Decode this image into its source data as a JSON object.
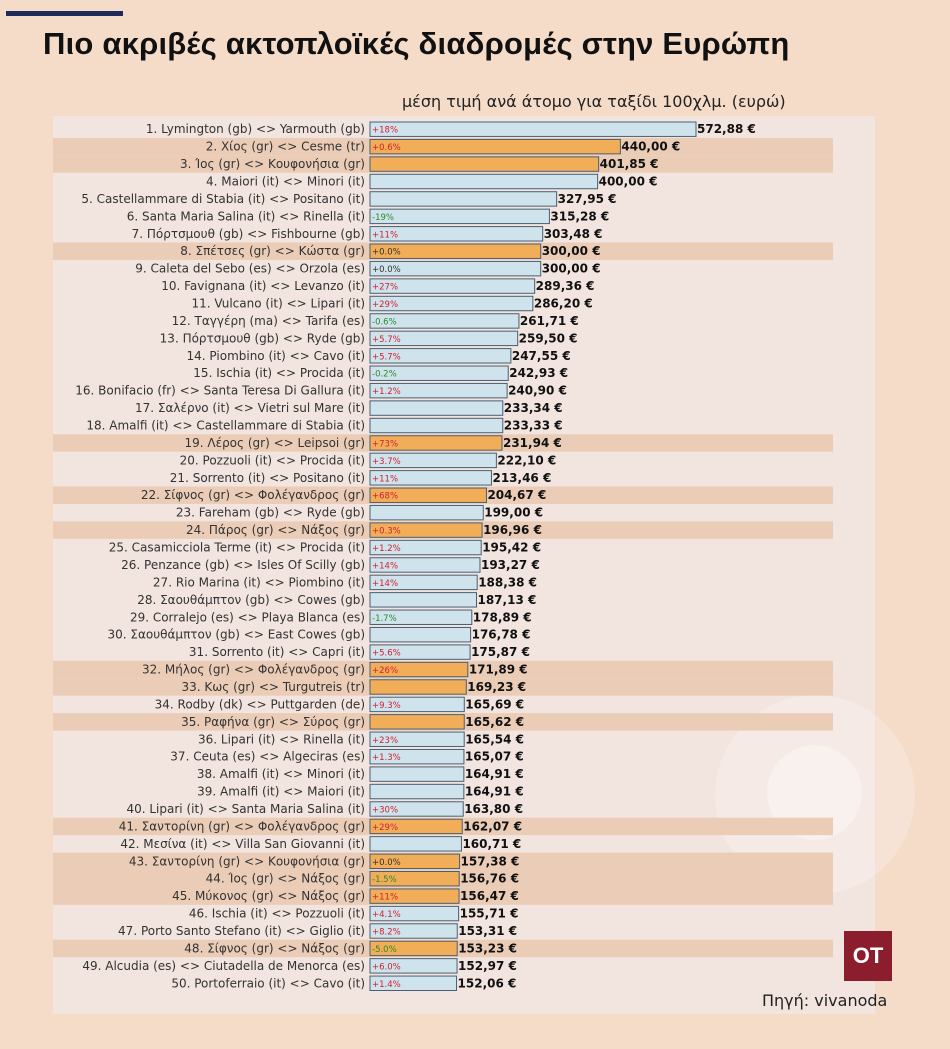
{
  "header": {
    "title": "Πιο ακριβές ακτοπλοϊκές διαδρομές στην Ευρώπη",
    "subtitle": "μέση τιμή ανά άτομο για ταξίδι 100χλμ. (ευρώ)"
  },
  "footer": {
    "source": "Πηγή: vivanoda",
    "logo_text": "OT"
  },
  "colors": {
    "background": "#f4dcc9",
    "panel": "#f2e4de",
    "highlight_row": "#ebcdb7",
    "bar_default": "#cfe3ec",
    "bar_highlight": "#f1ad57",
    "bar_edge": "#4a5f74",
    "change_positive": "#d02030",
    "change_negative": "#2a8a2a",
    "change_zero": "#333333",
    "logo": "#8b1d2c"
  },
  "chart_data": {
    "type": "bar",
    "orientation": "horizontal",
    "title": "Πιο ακριβές ακτοπλοϊκές διαδρομές στην Ευρώπη",
    "subtitle": "μέση τιμή ανά άτομο για ταξίδι 100χλμ. (ευρώ)",
    "value_suffix": " €",
    "xlim": [
      0,
      572.88
    ],
    "grid": false,
    "categories": [
      "1. Lymington (gb) <> Yarmouth (gb)",
      "2. Χίος (gr) <> Cesme (tr)",
      "3. Ίος (gr) <> Κουφονήσια (gr)",
      "4. Maiori (it) <> Minori (it)",
      "5. Castellammare di Stabia (it) <> Positano (it)",
      "6. Santa Maria Salina (it) <> Rinella (it)",
      "7. Πόρτσμουθ (gb) <> Fishbourne (gb)",
      "8. Σπέτσες (gr) <> Κώστα (gr)",
      "9. Caleta del Sebo (es) <> Orzola (es)",
      "10. Favignana (it) <> Levanzo (it)",
      "11. Vulcano (it) <> Lipari (it)",
      "12. Ταγγέρη (ma) <> Tarifa (es)",
      "13. Πόρτσμουθ (gb) <> Ryde (gb)",
      "14. Piombino (it) <> Cavo (it)",
      "15. Ischia (it) <> Procida (it)",
      "16. Bonifacio (fr) <> Santa Teresa Di Gallura (it)",
      "17. Σαλέρνο (it) <> Vietri sul Mare (it)",
      "18. Amalfi (it) <> Castellammare di Stabia (it)",
      "19. Λέρος (gr) <> Leipsoi (gr)",
      "20. Pozzuoli (it) <> Procida (it)",
      "21. Sorrento (it) <> Positano (it)",
      "22. Σίφνος (gr) <> Φολέγανδρος (gr)",
      "23. Fareham (gb) <> Ryde (gb)",
      "24. Πάρος (gr) <> Νάξος (gr)",
      "25. Casamicciola Terme (it) <> Procida (it)",
      "26. Penzance (gb) <> Isles Of Scilly (gb)",
      "27. Rio Marina (it) <> Piombino (it)",
      "28. Σαουθάμπτον (gb) <> Cowes (gb)",
      "29. Corralejo (es) <> Playa Blanca (es)",
      "30. Σαουθάμπτον (gb) <> East Cowes (gb)",
      "31. Sorrento (it) <> Capri (it)",
      "32. Μήλος (gr) <> Φολέγανδρος (gr)",
      "33. Κως (gr) <> Turgutreis (tr)",
      "34. Rodby (dk) <> Puttgarden (de)",
      "35. Ραφήνα (gr) <> Σύρος (gr)",
      "36. Lipari (it) <> Rinella (it)",
      "37. Ceuta (es) <> Algeciras (es)",
      "38. Amalfi (it) <> Minori (it)",
      "39. Amalfi (it) <> Maiori (it)",
      "40. Lipari (it) <> Santa Maria Salina (it)",
      "41. Σαντορίνη (gr) <> Φολέγανδρος (gr)",
      "42. Μεσίνα (it) <> Villa San Giovanni (it)",
      "43. Σαντορίνη (gr) <> Κουφονήσια (gr)",
      "44. Ίος (gr) <> Νάξος (gr)",
      "45. Μύκονος (gr) <> Νάξος (gr)",
      "46. Ischia (it) <> Pozzuoli (it)",
      "47. Porto Santo Stefano (it) <> Giglio (it)",
      "48. Σίφνος (gr) <> Νάξος (gr)",
      "49. Alcudia (es) <> Ciutadella de Menorca (es)",
      "50. Portoferraio (it) <> Cavo (it)"
    ],
    "values": [
      572.88,
      440.0,
      401.85,
      400.0,
      327.95,
      315.28,
      303.48,
      300.0,
      300.0,
      289.36,
      286.2,
      261.71,
      259.5,
      247.55,
      242.93,
      240.9,
      233.34,
      233.33,
      231.94,
      222.1,
      213.46,
      204.67,
      199.0,
      196.96,
      195.42,
      193.27,
      188.38,
      187.13,
      178.89,
      176.78,
      175.87,
      171.89,
      169.23,
      165.69,
      165.62,
      165.54,
      165.07,
      164.91,
      164.91,
      163.8,
      162.07,
      160.71,
      157.38,
      156.76,
      156.47,
      155.71,
      153.31,
      153.23,
      152.97,
      152.06
    ],
    "value_labels": [
      "572,88 €",
      "440,00 €",
      "401,85 €",
      "400,00 €",
      "327,95 €",
      "315,28 €",
      "303,48 €",
      "300,00 €",
      "300,00 €",
      "289,36 €",
      "286,20 €",
      "261,71 €",
      "259,50 €",
      "247,55 €",
      "242,93 €",
      "240,90 €",
      "233,34 €",
      "233,33 €",
      "231,94 €",
      "222,10 €",
      "213,46 €",
      "204,67 €",
      "199,00 €",
      "196,96 €",
      "195,42 €",
      "193,27 €",
      "188,38 €",
      "187,13 €",
      "178,89 €",
      "176,78 €",
      "175,87 €",
      "171,89 €",
      "169,23 €",
      "165,69 €",
      "165,62 €",
      "165,54 €",
      "165,07 €",
      "164,91 €",
      "164,91 €",
      "163,80 €",
      "162,07 €",
      "160,71 €",
      "157,38 €",
      "156,76 €",
      "156,47 €",
      "155,71 €",
      "153,31 €",
      "153,23 €",
      "152,97 €",
      "152,06 €"
    ],
    "change_labels": [
      "+18%",
      "+0.6%",
      "",
      "",
      "",
      "-19%",
      "+11%",
      "+0.0%",
      "+0.0%",
      "+27%",
      "+29%",
      "-0.6%",
      "+5.7%",
      "+5.7%",
      "-0.2%",
      "+1.2%",
      "",
      "",
      "+73%",
      "+3.7%",
      "+11%",
      "+68%",
      "",
      "+0.3%",
      "+1.2%",
      "+14%",
      "+14%",
      "",
      "-1.7%",
      "",
      "+5.6%",
      "+26%",
      "",
      "+9.3%",
      "",
      "+23%",
      "+1.3%",
      "",
      "",
      "+30%",
      "+29%",
      "",
      "+0.0%",
      "-1.5%",
      "+11%",
      "+4.1%",
      "+8.2%",
      "-5.0%",
      "+6.0%",
      "+1.4%"
    ],
    "highlighted": [
      false,
      true,
      true,
      false,
      false,
      false,
      false,
      true,
      false,
      false,
      false,
      false,
      false,
      false,
      false,
      false,
      false,
      false,
      true,
      false,
      false,
      true,
      false,
      true,
      false,
      false,
      false,
      false,
      false,
      false,
      false,
      true,
      true,
      false,
      true,
      false,
      false,
      false,
      false,
      false,
      true,
      false,
      true,
      true,
      true,
      false,
      false,
      true,
      false,
      false
    ]
  }
}
